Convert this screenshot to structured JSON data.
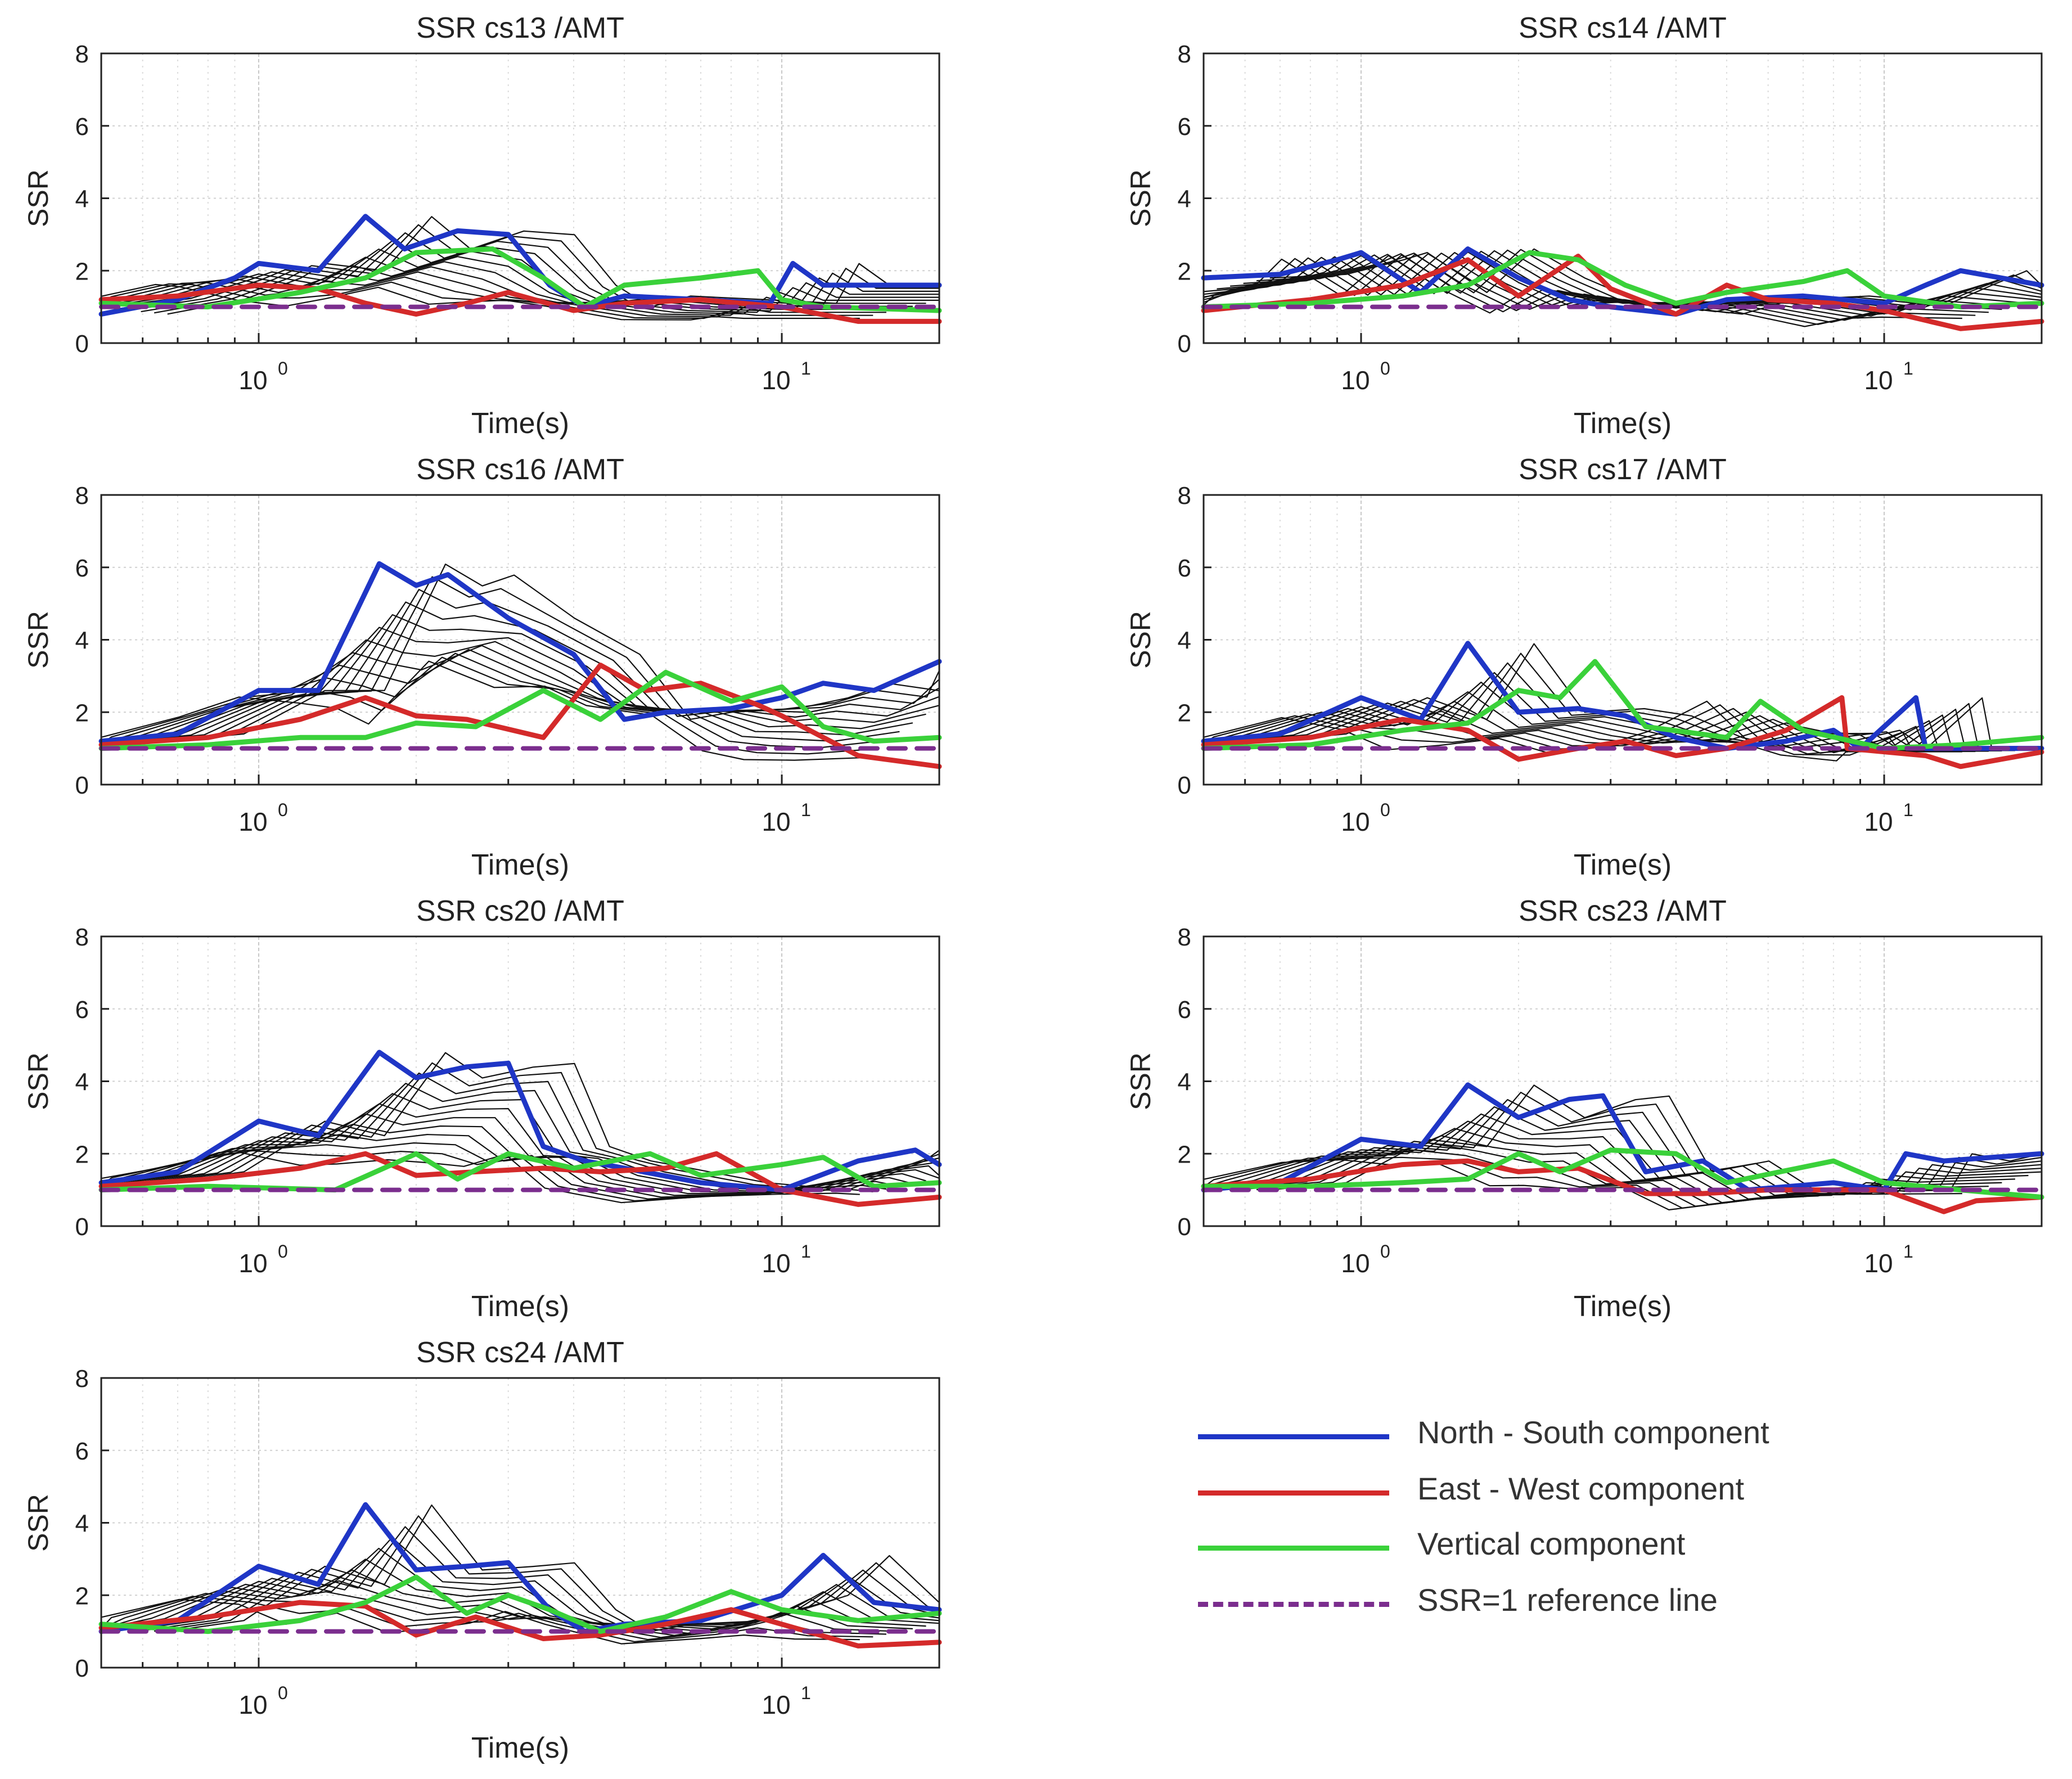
{
  "chart_data": [
    {
      "type": "line",
      "title": "SSR cs13 /AMT",
      "xlabel": "Time(s)",
      "ylabel": "SSR",
      "xscale": "log",
      "xlim": [
        0.5,
        20
      ],
      "ylim": [
        0,
        8
      ],
      "grid": true,
      "series": [
        {
          "name": "North - South component",
          "x": [
            0.5,
            0.7,
            0.9,
            1.0,
            1.3,
            1.6,
            1.9,
            2.4,
            3.0,
            3.6,
            4.2,
            5.0,
            7.0,
            9.5,
            10.5,
            12,
            20
          ],
          "y": [
            0.8,
            1.2,
            1.8,
            2.2,
            2.0,
            3.5,
            2.6,
            3.1,
            3.0,
            1.6,
            1.0,
            1.3,
            1.2,
            1.1,
            2.2,
            1.6,
            1.6
          ]
        },
        {
          "name": "East - West component",
          "x": [
            0.5,
            0.7,
            1.0,
            1.3,
            1.6,
            2.0,
            2.5,
            3.0,
            4.0,
            5.0,
            7.0,
            10,
            14,
            20
          ],
          "y": [
            1.2,
            1.3,
            1.6,
            1.5,
            1.1,
            0.8,
            1.1,
            1.4,
            0.9,
            1.1,
            1.2,
            1.0,
            0.6,
            0.6
          ]
        },
        {
          "name": "Vertical component",
          "x": [
            0.5,
            0.8,
            1.2,
            1.6,
            2.0,
            2.8,
            3.5,
            4.2,
            5.0,
            7.0,
            9.0,
            10,
            12,
            20
          ],
          "y": [
            1.1,
            1.0,
            1.4,
            1.8,
            2.5,
            2.6,
            1.8,
            1.0,
            1.6,
            1.8,
            2.0,
            1.2,
            1.0,
            0.9
          ]
        },
        {
          "name": "SSR=1 reference line",
          "x": [
            0.5,
            20
          ],
          "y": [
            1,
            1
          ]
        }
      ]
    },
    {
      "type": "line",
      "title": "SSR cs14 /AMT",
      "xlabel": "Time(s)",
      "ylabel": "SSR",
      "xscale": "log",
      "xlim": [
        0.5,
        20
      ],
      "ylim": [
        0,
        8
      ],
      "grid": true,
      "series": [
        {
          "name": "North - South component",
          "x": [
            0.5,
            0.7,
            0.9,
            1.0,
            1.3,
            1.6,
            2.0,
            2.5,
            3.0,
            4.0,
            5.0,
            7.0,
            10,
            12,
            14,
            20
          ],
          "y": [
            1.8,
            1.9,
            2.3,
            2.5,
            1.4,
            2.6,
            1.8,
            1.2,
            1.0,
            0.8,
            1.2,
            1.3,
            1.1,
            1.6,
            2.0,
            1.6
          ]
        },
        {
          "name": "East - West component",
          "x": [
            0.5,
            0.8,
            1.2,
            1.6,
            2.0,
            2.6,
            3.0,
            4.0,
            5.0,
            6.0,
            8.0,
            10,
            14,
            20
          ],
          "y": [
            0.9,
            1.2,
            1.6,
            2.3,
            1.3,
            2.4,
            1.5,
            0.8,
            1.6,
            1.2,
            1.1,
            0.9,
            0.4,
            0.6
          ]
        },
        {
          "name": "Vertical component",
          "x": [
            0.5,
            0.8,
            1.2,
            1.6,
            2.1,
            2.6,
            3.2,
            4.0,
            5.0,
            7.0,
            8.5,
            10,
            14,
            20
          ],
          "y": [
            1.0,
            1.1,
            1.3,
            1.6,
            2.5,
            2.3,
            1.6,
            1.1,
            1.4,
            1.7,
            2.0,
            1.3,
            1.0,
            1.1
          ]
        },
        {
          "name": "SSR=1 reference line",
          "x": [
            0.5,
            20
          ],
          "y": [
            1,
            1
          ]
        }
      ]
    },
    {
      "type": "line",
      "title": "SSR cs16 /AMT",
      "xlabel": "Time(s)",
      "ylabel": "SSR",
      "xscale": "log",
      "xlim": [
        0.5,
        20
      ],
      "ylim": [
        0,
        8
      ],
      "grid": true,
      "series": [
        {
          "name": "North - South component",
          "x": [
            0.5,
            0.7,
            1.0,
            1.3,
            1.7,
            2.0,
            2.3,
            3.0,
            4.0,
            5.0,
            6.0,
            8.0,
            10,
            12,
            15,
            20
          ],
          "y": [
            1.2,
            1.4,
            2.6,
            2.6,
            6.1,
            5.5,
            5.8,
            4.6,
            3.6,
            1.8,
            2.0,
            2.1,
            2.4,
            2.8,
            2.6,
            3.4
          ]
        },
        {
          "name": "East - West component",
          "x": [
            0.5,
            0.8,
            1.2,
            1.6,
            2.0,
            2.5,
            3.5,
            4.5,
            5.5,
            7.0,
            9.0,
            10,
            14,
            20
          ],
          "y": [
            1.1,
            1.3,
            1.8,
            2.4,
            1.9,
            1.8,
            1.3,
            3.3,
            2.6,
            2.8,
            2.2,
            1.9,
            0.8,
            0.5
          ]
        },
        {
          "name": "Vertical component",
          "x": [
            0.5,
            0.8,
            1.2,
            1.6,
            2.0,
            2.6,
            3.5,
            4.5,
            6.0,
            8.0,
            10,
            12,
            15,
            20
          ],
          "y": [
            1.0,
            1.1,
            1.3,
            1.3,
            1.7,
            1.6,
            2.6,
            1.8,
            3.1,
            2.3,
            2.7,
            1.6,
            1.2,
            1.3
          ]
        },
        {
          "name": "SSR=1 reference line",
          "x": [
            0.5,
            20
          ],
          "y": [
            1,
            1
          ]
        }
      ]
    },
    {
      "type": "line",
      "title": "SSR cs17 /AMT",
      "xlabel": "Time(s)",
      "ylabel": "SSR",
      "xscale": "log",
      "xlim": [
        0.5,
        20
      ],
      "ylim": [
        0,
        8
      ],
      "grid": true,
      "series": [
        {
          "name": "North - South component",
          "x": [
            0.5,
            0.7,
            1.0,
            1.3,
            1.6,
            2.0,
            2.6,
            3.2,
            4.0,
            5.0,
            6.5,
            8.0,
            9.0,
            11.5,
            12,
            20
          ],
          "y": [
            1.2,
            1.4,
            2.4,
            1.8,
            3.9,
            2.0,
            2.1,
            1.9,
            1.3,
            1.0,
            1.2,
            1.5,
            1.0,
            2.4,
            1.0,
            1.0
          ]
        },
        {
          "name": "East - West component",
          "x": [
            0.5,
            0.8,
            1.2,
            1.6,
            2.0,
            2.6,
            3.2,
            4.0,
            5.0,
            6.5,
            8.3,
            8.5,
            12,
            14,
            20
          ],
          "y": [
            1.1,
            1.3,
            1.8,
            1.5,
            0.7,
            1.0,
            1.2,
            0.8,
            1.0,
            1.5,
            2.4,
            1.0,
            0.8,
            0.5,
            0.9
          ]
        },
        {
          "name": "Vertical component",
          "x": [
            0.5,
            0.8,
            1.2,
            1.6,
            2.0,
            2.4,
            2.8,
            3.5,
            5.0,
            5.8,
            7.0,
            10,
            14,
            20
          ],
          "y": [
            1.0,
            1.1,
            1.5,
            1.7,
            2.6,
            2.4,
            3.4,
            1.6,
            1.3,
            2.3,
            1.5,
            1.0,
            1.1,
            1.3
          ]
        },
        {
          "name": "SSR=1 reference line",
          "x": [
            0.5,
            20
          ],
          "y": [
            1,
            1
          ]
        }
      ]
    },
    {
      "type": "line",
      "title": "SSR cs20 /AMT",
      "xlabel": "Time(s)",
      "ylabel": "SSR",
      "xscale": "log",
      "xlim": [
        0.5,
        20
      ],
      "ylim": [
        0,
        8
      ],
      "grid": true,
      "series": [
        {
          "name": "North - South component",
          "x": [
            0.5,
            0.7,
            1.0,
            1.3,
            1.7,
            2.0,
            2.5,
            3.0,
            3.5,
            4.2,
            5.0,
            7.0,
            10,
            14,
            18,
            20
          ],
          "y": [
            1.2,
            1.5,
            2.9,
            2.5,
            4.8,
            4.1,
            4.4,
            4.5,
            2.2,
            1.8,
            1.6,
            1.2,
            1.0,
            1.8,
            2.1,
            1.7
          ]
        },
        {
          "name": "East - West component",
          "x": [
            0.5,
            0.8,
            1.2,
            1.6,
            2.0,
            2.6,
            3.5,
            4.5,
            6.0,
            7.5,
            10,
            14,
            20
          ],
          "y": [
            1.1,
            1.3,
            1.6,
            2.0,
            1.4,
            1.5,
            1.6,
            1.5,
            1.6,
            2.0,
            1.0,
            0.6,
            0.8
          ]
        },
        {
          "name": "Vertical component",
          "x": [
            0.5,
            0.8,
            1.4,
            2.0,
            2.4,
            3.0,
            4.0,
            5.6,
            7.0,
            10,
            12,
            15,
            20
          ],
          "y": [
            1.0,
            1.1,
            1.0,
            2.0,
            1.3,
            2.0,
            1.6,
            2.0,
            1.4,
            1.7,
            1.9,
            1.1,
            1.2
          ]
        },
        {
          "name": "SSR=1 reference line",
          "x": [
            0.5,
            20
          ],
          "y": [
            1,
            1
          ]
        }
      ]
    },
    {
      "type": "line",
      "title": "SSR cs23 /AMT",
      "xlabel": "Time(s)",
      "ylabel": "SSR",
      "xscale": "log",
      "xlim": [
        0.5,
        20
      ],
      "ylim": [
        0,
        8
      ],
      "grid": true,
      "series": [
        {
          "name": "North - South component",
          "x": [
            0.5,
            0.7,
            1.0,
            1.3,
            1.6,
            2.0,
            2.5,
            2.9,
            3.5,
            4.5,
            5.5,
            8.0,
            10,
            11,
            13,
            20
          ],
          "y": [
            1.0,
            1.2,
            2.4,
            2.2,
            3.9,
            3.0,
            3.5,
            3.6,
            1.5,
            1.8,
            1.0,
            1.2,
            1.0,
            2.0,
            1.8,
            2.0
          ]
        },
        {
          "name": "East - West component",
          "x": [
            0.5,
            0.8,
            1.2,
            1.6,
            2.0,
            2.6,
            3.5,
            4.5,
            6.0,
            10,
            13,
            15,
            20
          ],
          "y": [
            1.1,
            1.3,
            1.7,
            1.8,
            1.5,
            1.6,
            0.9,
            0.9,
            1.0,
            1.0,
            0.4,
            0.7,
            0.8
          ]
        },
        {
          "name": "Vertical component",
          "x": [
            0.5,
            0.8,
            1.2,
            1.6,
            2.0,
            2.4,
            3.0,
            4.0,
            5.0,
            8.0,
            10,
            14,
            20
          ],
          "y": [
            1.1,
            1.1,
            1.2,
            1.3,
            2.0,
            1.5,
            2.1,
            2.0,
            1.2,
            1.8,
            1.2,
            1.0,
            0.8
          ]
        },
        {
          "name": "SSR=1 reference line",
          "x": [
            0.5,
            20
          ],
          "y": [
            1,
            1
          ]
        }
      ]
    },
    {
      "type": "line",
      "title": "SSR cs24 /AMT",
      "xlabel": "Time(s)",
      "ylabel": "SSR",
      "xscale": "log",
      "xlim": [
        0.5,
        20
      ],
      "ylim": [
        0,
        8
      ],
      "grid": true,
      "series": [
        {
          "name": "North - South component",
          "x": [
            0.5,
            0.7,
            1.0,
            1.3,
            1.6,
            2.0,
            2.5,
            3.0,
            3.6,
            4.2,
            5.0,
            7.0,
            10,
            12,
            15,
            20
          ],
          "y": [
            1.0,
            1.3,
            2.8,
            2.3,
            4.5,
            2.7,
            2.8,
            2.9,
            1.6,
            1.0,
            1.2,
            1.3,
            2.0,
            3.1,
            1.8,
            1.6
          ]
        },
        {
          "name": "East - West component",
          "x": [
            0.5,
            0.8,
            1.2,
            1.6,
            2.0,
            2.6,
            3.5,
            4.5,
            6.0,
            8.0,
            10,
            14,
            20
          ],
          "y": [
            1.1,
            1.4,
            1.8,
            1.7,
            0.9,
            1.4,
            0.8,
            0.9,
            1.2,
            1.6,
            1.2,
            0.6,
            0.7
          ]
        },
        {
          "name": "Vertical component",
          "x": [
            0.5,
            0.8,
            1.2,
            1.6,
            2.0,
            2.5,
            3.0,
            3.6,
            4.5,
            6.0,
            8.0,
            10,
            14,
            20
          ],
          "y": [
            1.2,
            1.0,
            1.3,
            1.8,
            2.5,
            1.5,
            2.0,
            1.6,
            1.0,
            1.4,
            2.1,
            1.6,
            1.3,
            1.5
          ]
        },
        {
          "name": "SSR=1 reference line",
          "x": [
            0.5,
            20
          ],
          "y": [
            1,
            1
          ]
        }
      ]
    }
  ],
  "legend": {
    "placement": "bottom-right",
    "items": [
      {
        "label": "North - South component",
        "color": "#1f36c6",
        "style": "solid"
      },
      {
        "label": "East - West component",
        "color": "#d42a2a",
        "style": "solid"
      },
      {
        "label": "Vertical component",
        "color": "#3ad13a",
        "style": "solid"
      },
      {
        "label": "SSR=1 reference line",
        "color": "#7b2e8e",
        "style": "dashed"
      }
    ]
  }
}
